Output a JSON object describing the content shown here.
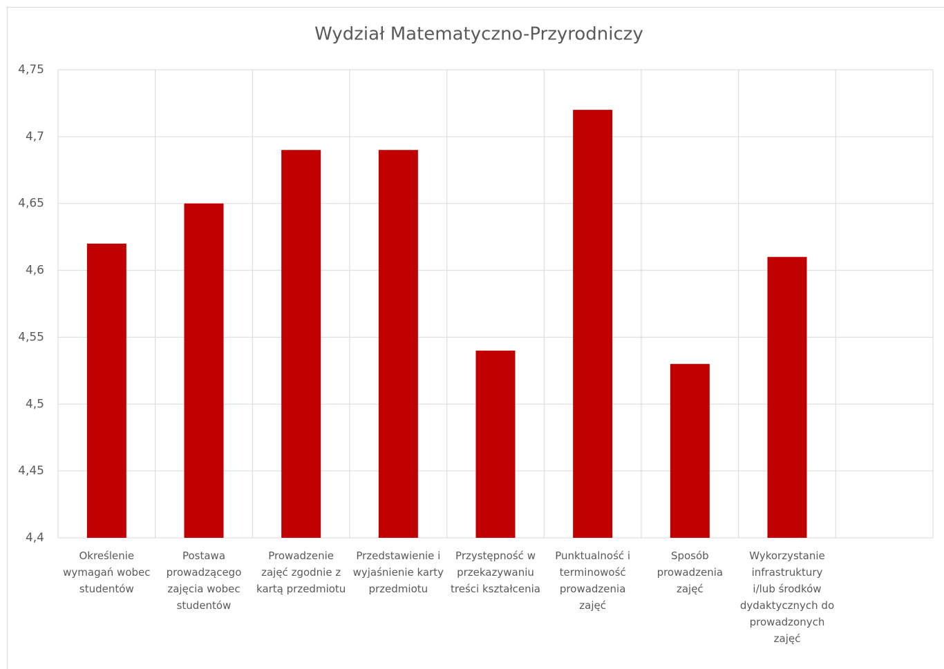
{
  "chart_data": {
    "type": "bar",
    "title": "Wydział Matematyczno-Przyrodniczy",
    "categories": [
      "Określenie wymagań wobec studentów",
      "Postawa prowadzącego zajęcia wobec studentów",
      "Prowadzenie zajęć zgodnie z kartą przedmiotu",
      "Przedstawienie i wyjaśnienie karty przedmiotu",
      "Przystępność w przekazywaniu treści kształcenia",
      "Punktualność i terminowość prowadzenia zajęć",
      "Sposób prowadzenia zajęć",
      "Wykorzystanie infrastruktury i/lub środków dydaktycznych do prowadzonych zajęć",
      null
    ],
    "values": [
      4.62,
      4.65,
      4.69,
      4.69,
      4.54,
      4.72,
      4.53,
      4.61,
      null
    ],
    "color": "#c00000",
    "ylim": [
      4.4,
      4.75
    ],
    "yticks": [
      {
        "value": 4.4,
        "label": "4,4"
      },
      {
        "value": 4.45,
        "label": "4,45"
      },
      {
        "value": 4.5,
        "label": "4,5"
      },
      {
        "value": 4.55,
        "label": "4,55"
      },
      {
        "value": 4.6,
        "label": "4,6"
      },
      {
        "value": 4.65,
        "label": "4,65"
      },
      {
        "value": 4.7,
        "label": "4,7"
      },
      {
        "value": 4.75,
        "label": "4,75"
      }
    ],
    "grid": true
  }
}
